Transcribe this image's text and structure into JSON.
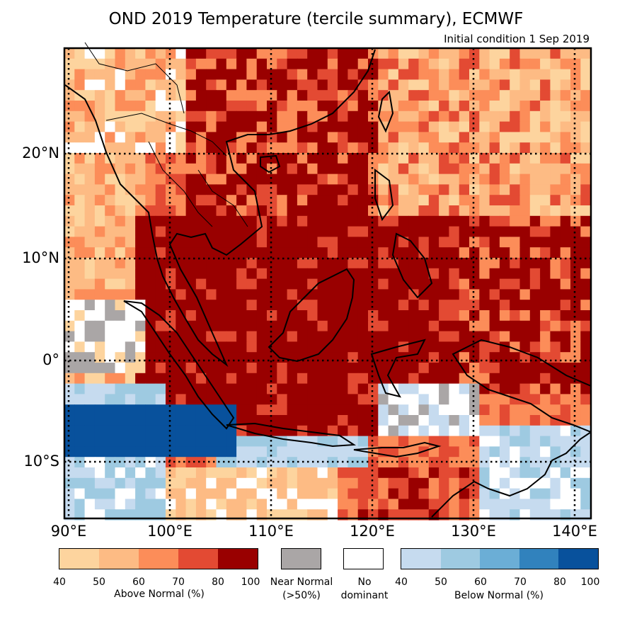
{
  "header": {
    "title": "OND 2019 Temperature (tercile summary), ECMWF",
    "subtitle": "Initial condition 1 Sep 2019"
  },
  "axes": {
    "lon_labels": [
      "90°E",
      "100°E",
      "110°E",
      "120°E",
      "130°E",
      "140°E"
    ],
    "lat_labels": [
      "20°N",
      "10°N",
      "0°",
      "10°S"
    ],
    "lon_range": [
      90,
      142
    ],
    "lat_range": [
      -15.5,
      30
    ]
  },
  "legend": {
    "above": {
      "caption": "Above Normal (%)",
      "ticks": [
        "40",
        "50",
        "60",
        "70",
        "80",
        "100"
      ],
      "colors": [
        "#fdd49e",
        "#fdbb84",
        "#fc8d59",
        "#e34a33",
        "#990000"
      ]
    },
    "near_normal": {
      "caption_line1": "Near Normal",
      "caption_line2": "(>50%)",
      "color": "#aaa6a6"
    },
    "no_dominant": {
      "caption_line1": "No",
      "caption_line2": "dominant",
      "color": "#ffffff"
    },
    "below": {
      "caption": "Below Normal (%)",
      "ticks": [
        "40",
        "50",
        "60",
        "70",
        "80",
        "100"
      ],
      "colors": [
        "#c6dbef",
        "#9ecae1",
        "#6baed6",
        "#3182bd",
        "#08519c"
      ]
    }
  },
  "colors": {
    "above_40": "#fdd49e",
    "above_50": "#fdbb84",
    "above_60": "#fc8d59",
    "above_70": "#e34a33",
    "above_80": "#990000",
    "near_normal": "#aaa6a6",
    "no_dominant": "#ffffff",
    "below_40": "#c6dbef",
    "below_50": "#9ecae1",
    "below_60": "#6baed6",
    "below_70": "#3182bd",
    "below_80": "#08519c"
  }
}
